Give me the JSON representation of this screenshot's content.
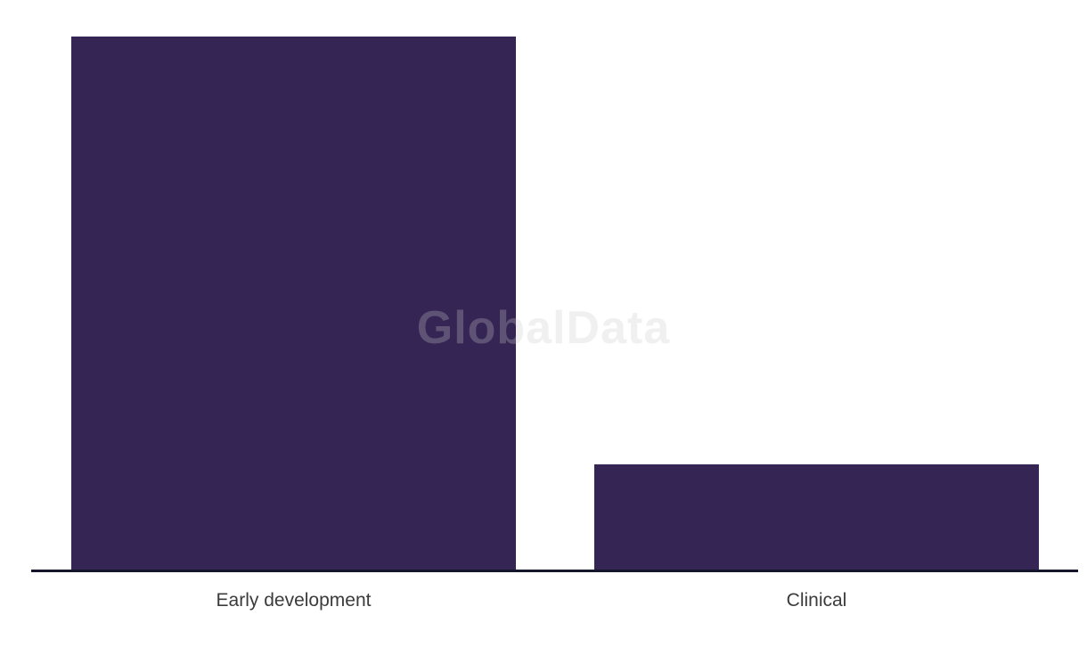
{
  "chart_data": {
    "type": "bar",
    "title": "",
    "xlabel": "",
    "ylabel": "",
    "categories": [
      "Early development",
      "Clinical"
    ],
    "values": [
      100,
      20
    ],
    "ylim": [
      0,
      100
    ],
    "grid": false,
    "legend": "none",
    "bar_color": "#352555",
    "axis_line_color": "#15152B",
    "label_color": "#3B3B3B",
    "background_color": "#FFFFFF",
    "watermark_text": "GlobalData"
  }
}
